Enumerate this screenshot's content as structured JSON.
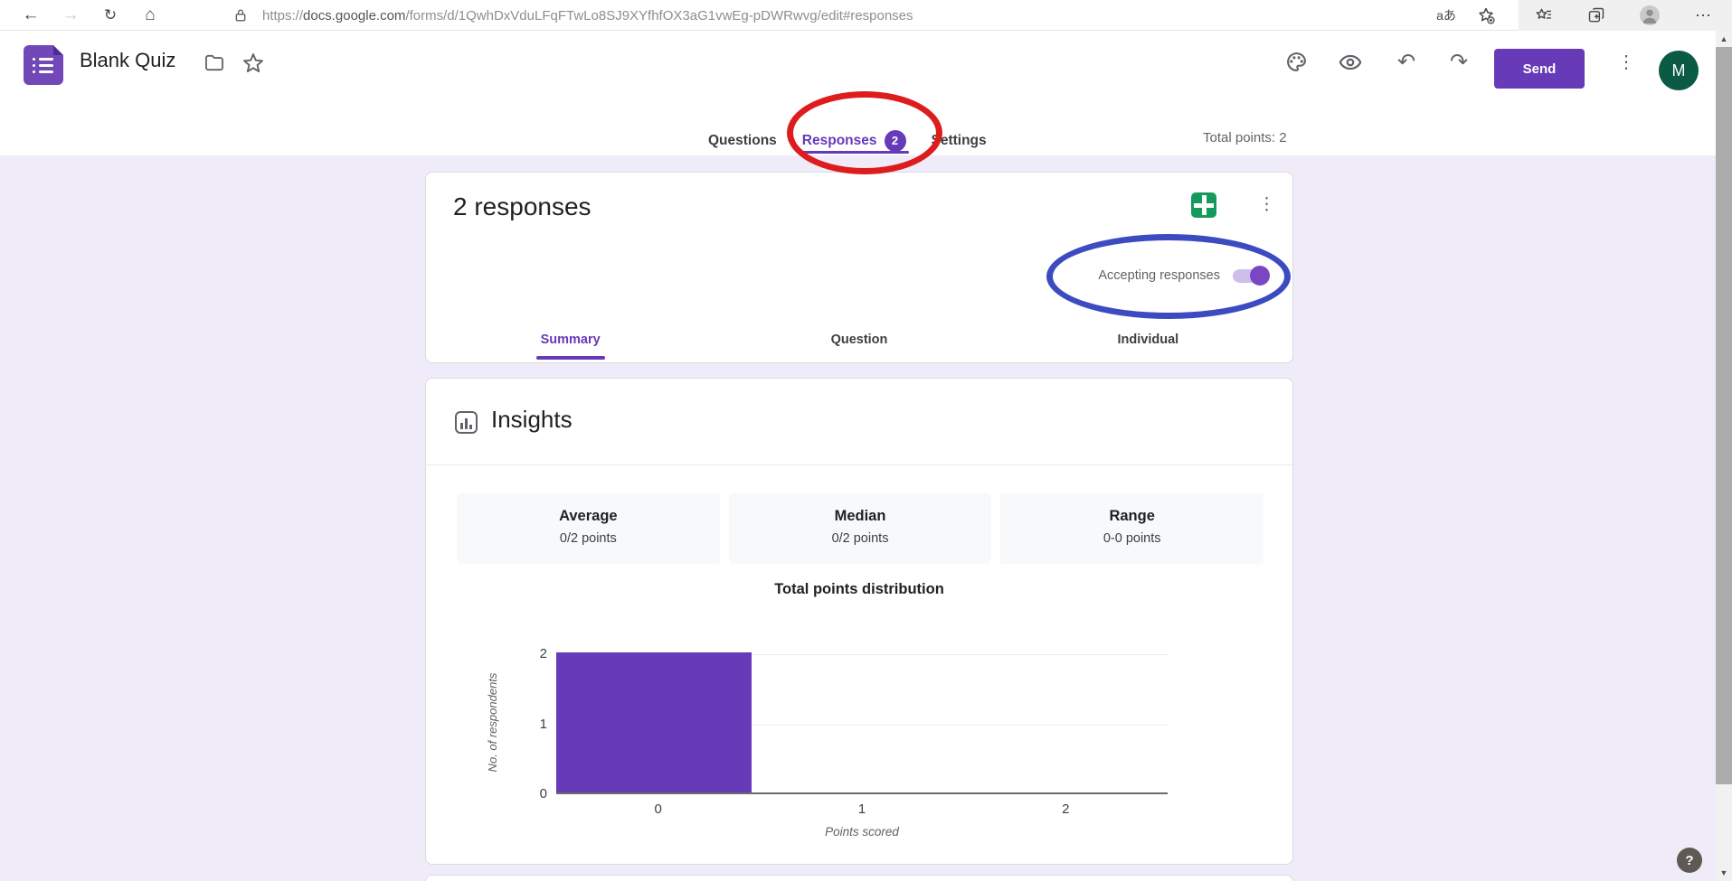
{
  "browser": {
    "url_scheme": "https://",
    "url_domain": "docs.google.com",
    "url_path": "/forms/d/1QwhDxVduLFqFTwLo8SJ9XYfhfOX3aG1vwEg-pDWRwvg/edit#responses",
    "translate_icon_label": "aあ",
    "more_icon_label": "⋯"
  },
  "header": {
    "title": "Blank Quiz",
    "send_label": "Send",
    "avatar_letter": "M",
    "total_points_label": "Total points: 2",
    "tabs": [
      {
        "label": "Questions",
        "active": false
      },
      {
        "label": "Responses",
        "badge": "2",
        "active": true
      },
      {
        "label": "Settings",
        "active": false
      }
    ]
  },
  "responses_card": {
    "title": "2 responses",
    "accepting_label": "Accepting responses",
    "toggle_on": true,
    "tabs": [
      {
        "label": "Summary",
        "active": true
      },
      {
        "label": "Question",
        "active": false
      },
      {
        "label": "Individual",
        "active": false
      }
    ]
  },
  "insights_card": {
    "title": "Insights",
    "stats": [
      {
        "label": "Average",
        "value": "0/2 points"
      },
      {
        "label": "Median",
        "value": "0/2 points"
      },
      {
        "label": "Range",
        "value": "0-0 points"
      }
    ]
  },
  "chart_data": {
    "type": "bar",
    "title": "Total points distribution",
    "categories": [
      "0",
      "1",
      "2"
    ],
    "values": [
      2,
      0,
      0
    ],
    "xlabel": "Points scored",
    "ylabel": "No. of respondents",
    "ylim": [
      0,
      2
    ],
    "yticks": [
      0,
      1,
      2
    ],
    "grid": true,
    "legend": "none",
    "bar_color": "#673ab7"
  },
  "annotations": [
    {
      "shape": "ellipse",
      "color": "#dd1d1d",
      "target": "responses-tab"
    },
    {
      "shape": "ellipse",
      "color": "#3c4bc0",
      "target": "accepting-responses-toggle"
    }
  ],
  "help_label": "?",
  "colors": {
    "accent_purple": "#673ab7",
    "page_background": "#f0ebf8",
    "sheets_green": "#149a5c",
    "avatar_green": "#0b5a43",
    "annotation_red": "#dd1d1d",
    "annotation_blue": "#3c4bc0"
  }
}
